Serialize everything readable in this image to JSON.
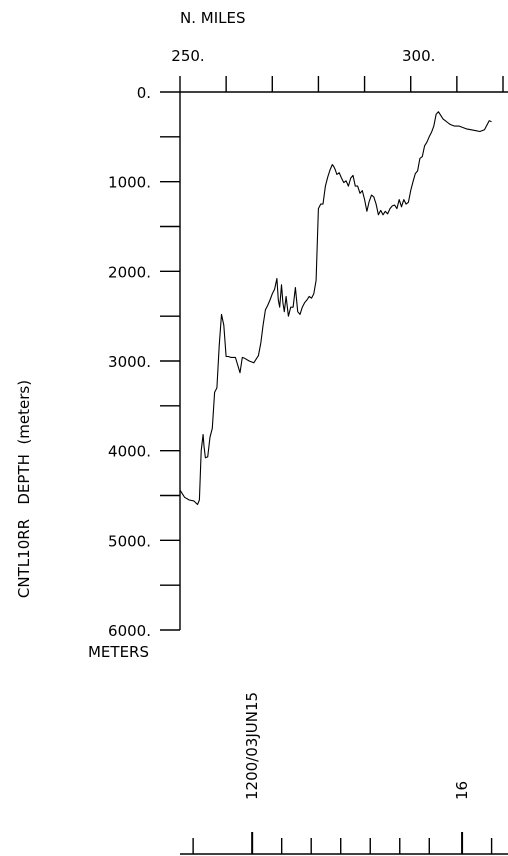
{
  "chart_data": {
    "type": "line",
    "title": "",
    "xlabel": "N. MILES",
    "ylabel": "CNTL10RR   DEPTH  (meters)",
    "yunit_label": "METERS",
    "xlim": [
      250,
      320
    ],
    "ylim": [
      0,
      6000
    ],
    "x_tick_labels": [
      {
        "value": 250,
        "label": "250."
      },
      {
        "value": 300,
        "label": "300."
      }
    ],
    "x_minor_ticks": [
      250,
      255,
      260,
      265,
      270,
      275,
      280,
      285,
      290,
      295,
      300,
      305,
      310,
      315,
      320
    ],
    "y_tick_labels": [
      {
        "value": 0,
        "label": "0."
      },
      {
        "value": 1000,
        "label": "1000."
      },
      {
        "value": 2000,
        "label": "2000."
      },
      {
        "value": 3000,
        "label": "3000."
      },
      {
        "value": 4000,
        "label": "4000."
      },
      {
        "value": 5000,
        "label": "5000."
      },
      {
        "value": 6000,
        "label": "6000."
      }
    ],
    "y_minor_ticks": [
      500,
      1500,
      2500,
      3500,
      4500,
      5500
    ],
    "time_axis": {
      "labels": [
        {
          "text": "1200/03JUN15",
          "position": 0.22
        },
        {
          "text": "16",
          "position": 0.86
        }
      ],
      "ticks": [
        0.04,
        0.22,
        0.31,
        0.4,
        0.49,
        0.58,
        0.67,
        0.76,
        0.86,
        0.95
      ]
    },
    "series": [
      {
        "name": "",
        "x": [
          250.0,
          250.5,
          251.0,
          252.0,
          253.0,
          253.8,
          254.2,
          254.6,
          255.0,
          255.2,
          255.5,
          256.0,
          256.5,
          257.0,
          257.5,
          258.0,
          258.5,
          259.0,
          259.5,
          260.0,
          260.5,
          261.0,
          262.0,
          263.0,
          263.5,
          264.0,
          265.0,
          266.0,
          267.0,
          267.5,
          268.0,
          268.5,
          269.0,
          269.5,
          270.0,
          270.5,
          271.0,
          271.3,
          271.6,
          272.0,
          272.3,
          272.6,
          273.0,
          273.5,
          274.0,
          274.5,
          275.0,
          275.5,
          276.0,
          276.5,
          277.0,
          277.5,
          278.0,
          278.5,
          279.0,
          279.5,
          280.0,
          280.5,
          281.0,
          281.5,
          282.0,
          282.5,
          283.0,
          283.3,
          283.6,
          284.0,
          284.5,
          285.0,
          285.5,
          286.0,
          286.5,
          287.0,
          287.5,
          288.0,
          288.5,
          289.0,
          289.5,
          290.0,
          290.5,
          291.0,
          291.5,
          292.0,
          292.5,
          293.0,
          293.5,
          294.0,
          294.5,
          295.0,
          295.5,
          296.0,
          296.5,
          297.0,
          297.5,
          298.0,
          298.5,
          299.0,
          299.5,
          300.0,
          300.5,
          301.0,
          301.5,
          302.0,
          302.5,
          303.0,
          303.5,
          304.0,
          304.5,
          305.0,
          305.5,
          306.0,
          306.5,
          307.0,
          307.5,
          308.0,
          308.5,
          309.0,
          309.5,
          310.0,
          310.5,
          311.0,
          311.5,
          312.0,
          313.0,
          314.0,
          315.0,
          316.0,
          317.0,
          317.5
        ],
        "y": [
          4440,
          4480,
          4520,
          4550,
          4560,
          4600,
          4550,
          4000,
          3820,
          3950,
          4080,
          4070,
          3850,
          3750,
          3350,
          3300,
          2830,
          2480,
          2600,
          2950,
          2950,
          2960,
          2960,
          3130,
          2960,
          2970,
          3000,
          3020,
          2940,
          2800,
          2600,
          2430,
          2380,
          2320,
          2250,
          2200,
          2080,
          2320,
          2400,
          2150,
          2350,
          2450,
          2280,
          2500,
          2400,
          2400,
          2180,
          2450,
          2480,
          2400,
          2350,
          2320,
          2280,
          2300,
          2250,
          2100,
          1300,
          1250,
          1250,
          1050,
          950,
          870,
          810,
          830,
          860,
          920,
          900,
          960,
          1010,
          990,
          1050,
          960,
          930,
          1050,
          1050,
          1130,
          1100,
          1200,
          1330,
          1220,
          1150,
          1170,
          1250,
          1370,
          1320,
          1370,
          1330,
          1360,
          1300,
          1270,
          1260,
          1300,
          1200,
          1280,
          1200,
          1250,
          1230,
          1100,
          1000,
          910,
          880,
          740,
          720,
          600,
          560,
          500,
          450,
          380,
          250,
          220,
          260,
          300,
          320,
          340,
          360,
          370,
          380,
          380,
          380,
          390,
          400,
          410,
          420,
          430,
          440,
          420,
          320,
          330
        ]
      }
    ]
  }
}
